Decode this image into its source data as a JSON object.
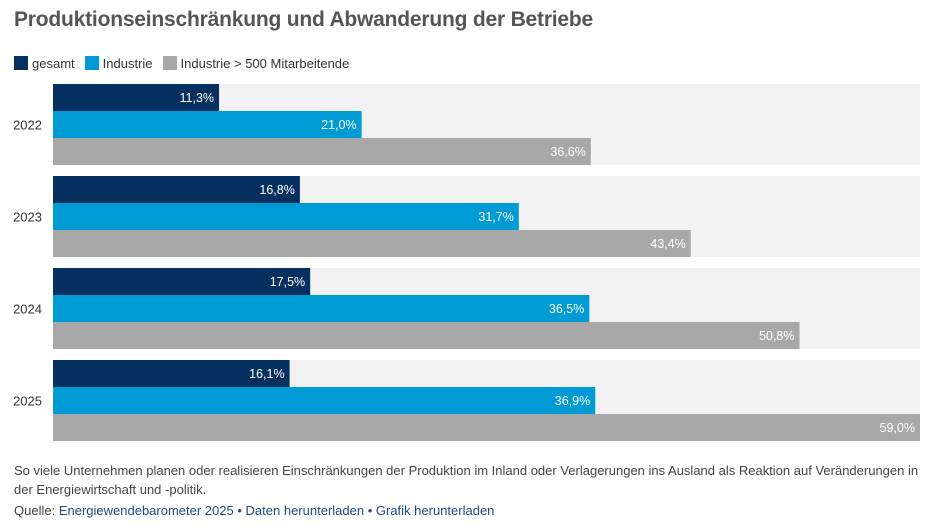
{
  "title": "Produktionseinschränkung und Abwanderung der Betriebe",
  "description": "So viele Unternehmen planen oder realisieren Einschränkungen der Produktion im Inland oder Verlagerungen ins Ausland als Reaktion auf Veränderungen in der Energiewirtschaft und -politik.",
  "source": {
    "label": "Quelle:",
    "link_report": "Energiewendebarometer 2025",
    "separator": "•",
    "link_data": "Daten herunterladen",
    "link_graphic": "Grafik herunterladen"
  },
  "colors": {
    "gesamt": "#06305f",
    "industrie": "#009ad4",
    "gross": "#a9a8a9",
    "row_background": "#f2f2f2"
  },
  "chart_data": {
    "type": "bar",
    "orientation": "horizontal",
    "categories": [
      "2022",
      "2023",
      "2024",
      "2025"
    ],
    "series": [
      {
        "name": "gesamt",
        "values": [
          11.3,
          16.8,
          17.5,
          16.1
        ],
        "labels": [
          "11,3%",
          "16,8%",
          "17,5%",
          "16,1%"
        ]
      },
      {
        "name": "Industrie",
        "values": [
          21.0,
          31.7,
          36.5,
          36.9
        ],
        "labels": [
          "21,0%",
          "31,7%",
          "36,5%",
          "36,9%"
        ]
      },
      {
        "name": "Industrie > 500 Mitarbeitende",
        "values": [
          36.6,
          43.4,
          50.8,
          59.0
        ],
        "labels": [
          "36,6%",
          "43,4%",
          "50,8%",
          "59,0%"
        ]
      }
    ],
    "xlim": [
      0,
      59.0
    ],
    "grid": false,
    "legend_position": "top-left"
  }
}
